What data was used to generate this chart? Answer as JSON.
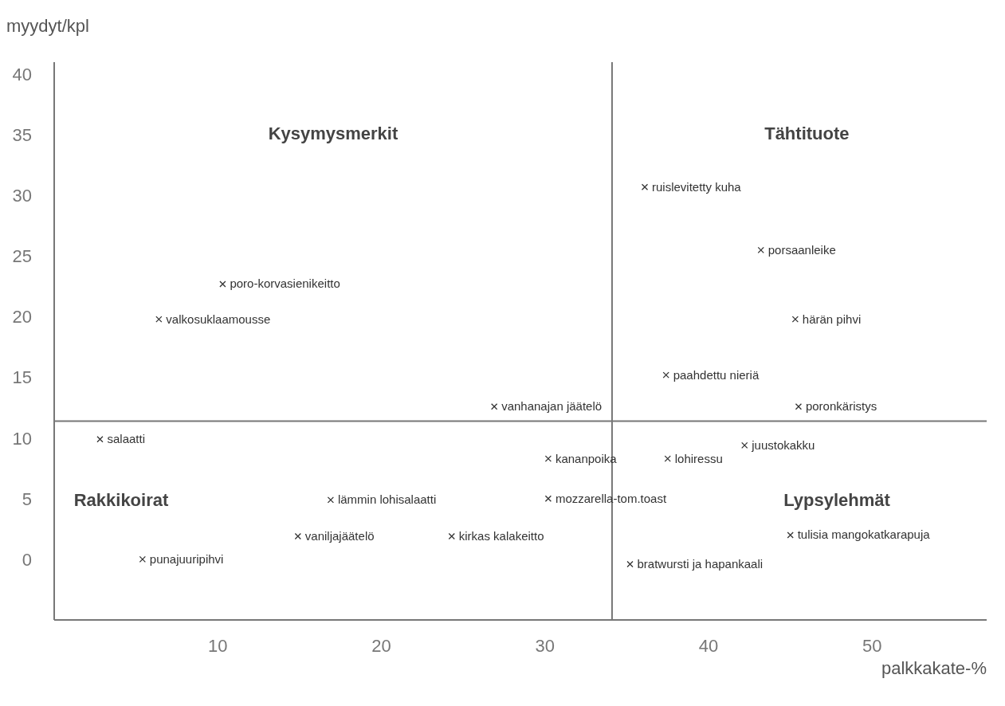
{
  "chart_data": {
    "type": "scatter",
    "xlabel": "palkkakate-%",
    "ylabel": "myydyt/kpl",
    "xlim": [
      0,
      57
    ],
    "ylim": [
      -5,
      41
    ],
    "xticks": [
      10,
      20,
      30,
      40,
      50
    ],
    "yticks": [
      0,
      5,
      10,
      15,
      20,
      25,
      30,
      35,
      40
    ],
    "grid": false,
    "legend": false,
    "marker": "cross",
    "ref_lines": [
      {
        "axis": "x",
        "value": 34.1,
        "color": "#777777"
      },
      {
        "axis": "y",
        "value": 11.4,
        "color": "#777777"
      }
    ],
    "annotations": [
      "Kysymysmerkit",
      "Tähtituote",
      "Rakkikoirat",
      "Lypsylehmät"
    ],
    "series": [
      {
        "name": "ruislevitetty kuha",
        "color": "#333333",
        "x": [
          36.1
        ],
        "values": [
          30.7
        ]
      },
      {
        "name": "porsaanleike",
        "color": "#333333",
        "x": [
          43.2
        ],
        "values": [
          25.5
        ]
      },
      {
        "name": "härän pihvi",
        "color": "#333333",
        "x": [
          45.3
        ],
        "values": [
          19.8
        ]
      },
      {
        "name": "paahdettu nieriä",
        "color": "#333333",
        "x": [
          37.4
        ],
        "values": [
          15.2
        ]
      },
      {
        "name": "poronkäristys",
        "color": "#333333",
        "x": [
          45.5
        ],
        "values": [
          12.6
        ]
      },
      {
        "name": "juustokakku",
        "color": "#333333",
        "x": [
          42.2
        ],
        "values": [
          9.4
        ]
      },
      {
        "name": "lohiressu",
        "color": "#333333",
        "x": [
          37.5
        ],
        "values": [
          8.3
        ]
      },
      {
        "name": "kananpoika",
        "color": "#333333",
        "x": [
          30.2
        ],
        "values": [
          8.3
        ]
      },
      {
        "name": "mozzarella-tom.toast",
        "color": "#333333",
        "x": [
          30.2
        ],
        "values": [
          5.0
        ]
      },
      {
        "name": "vanhanajan jäätelö",
        "color": "#333333",
        "x": [
          26.9
        ],
        "values": [
          12.6
        ]
      },
      {
        "name": "tulisia mangokatkarapuja",
        "color": "#333333",
        "x": [
          45.0
        ],
        "values": [
          2.0
        ]
      },
      {
        "name": "bratwursti ja hapankaali",
        "color": "#333333",
        "x": [
          35.2
        ],
        "values": [
          -0.4
        ]
      },
      {
        "name": "poro-korvasienikeitto",
        "color": "#333333",
        "x": [
          10.3
        ],
        "values": [
          22.7
        ]
      },
      {
        "name": "valkosuklaamousse",
        "color": "#333333",
        "x": [
          6.4
        ],
        "values": [
          19.8
        ]
      },
      {
        "name": "salaatti",
        "color": "#333333",
        "x": [
          2.8
        ],
        "values": [
          9.9
        ]
      },
      {
        "name": "lämmin lohisalaatti",
        "color": "#333333",
        "x": [
          16.9
        ],
        "values": [
          4.9
        ]
      },
      {
        "name": "vaniljajäätelö",
        "color": "#333333",
        "x": [
          14.9
        ],
        "values": [
          1.9
        ]
      },
      {
        "name": "kirkas kalakeitto",
        "color": "#333333",
        "x": [
          24.3
        ],
        "values": [
          1.9
        ]
      },
      {
        "name": "punajuuripihvi",
        "color": "#333333",
        "x": [
          5.4
        ],
        "values": [
          0.0
        ]
      }
    ]
  }
}
